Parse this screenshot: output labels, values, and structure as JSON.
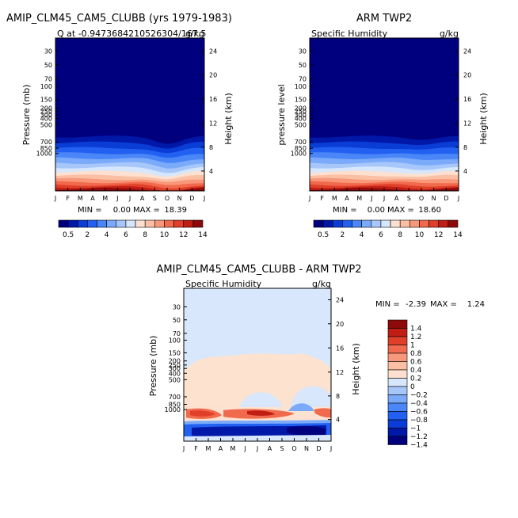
{
  "panels": [
    {
      "title": "AMIP_CLM45_CAM5_CLUBB (yrs 1979-1983)",
      "subtitle": "Q at -0.9473684210526304/167.5",
      "units": "g/kg",
      "ylabel": "Pressure (mb)",
      "ylabel_right": "Height (km)",
      "min_label": "MIN =",
      "min_value": "0.00",
      "max_label": "MAX =",
      "max_value": "18.39"
    },
    {
      "title": "ARM TWP2",
      "subtitle": "Specific Humidity",
      "units": "g/kg",
      "ylabel": "pressure level",
      "ylabel_right": "Height (km)",
      "min_label": "MIN =",
      "min_value": "0.00",
      "max_label": "MAX =",
      "max_value": "18.60"
    },
    {
      "title": "AMIP_CLM45_CAM5_CLUBB - ARM TWP2",
      "subtitle": "Specific Humidity",
      "units": "g/kg",
      "ylabel": "Pressure (mb)",
      "ylabel_right": "Height (km)",
      "min_label": "MIN =",
      "min_value": "-2.39",
      "max_label": "MAX =",
      "max_value": "1.24"
    }
  ],
  "chart_data": [
    {
      "type": "heatmap",
      "x": [
        "J",
        "F",
        "M",
        "A",
        "M",
        "J",
        "J",
        "A",
        "S",
        "O",
        "N",
        "D",
        "J"
      ],
      "y_pressure_ticks": [
        "30",
        "50",
        "70",
        "100",
        "150",
        "200",
        "250",
        "300",
        "400",
        "500",
        "700",
        "850",
        "1000"
      ],
      "y_height_ticks": [
        "24",
        "20",
        "16",
        "12",
        "8",
        "4"
      ],
      "colorbar_ticks": [
        "0.5",
        "2",
        "4",
        "6",
        "8",
        "10",
        "12",
        "14"
      ],
      "colors": [
        "#00007f",
        "#0018a8",
        "#0a3cd6",
        "#2160f0",
        "#4a86f8",
        "#7aaaf9",
        "#a7c7fb",
        "#d6e6fc",
        "#fde0d0",
        "#fbbfa3",
        "#f8987a",
        "#f26a4d",
        "#e0402a",
        "#c01d14",
        "#8e0a0a"
      ]
    },
    {
      "type": "heatmap",
      "x": [
        "J",
        "F",
        "M",
        "A",
        "M",
        "J",
        "J",
        "A",
        "S",
        "O",
        "N",
        "D",
        "J"
      ],
      "y_pressure_ticks": [
        "30",
        "50",
        "70",
        "100",
        "150",
        "200",
        "250",
        "300",
        "400",
        "500",
        "700",
        "850",
        "1000"
      ],
      "y_height_ticks": [
        "24",
        "20",
        "16",
        "12",
        "8",
        "4"
      ],
      "colorbar_ticks": [
        "0.5",
        "2",
        "4",
        "6",
        "8",
        "10",
        "12",
        "14"
      ],
      "colors": [
        "#00007f",
        "#0018a8",
        "#0a3cd6",
        "#2160f0",
        "#4a86f8",
        "#7aaaf9",
        "#a7c7fb",
        "#d6e6fc",
        "#fde0d0",
        "#fbbfa3",
        "#f8987a",
        "#f26a4d",
        "#e0402a",
        "#c01d14",
        "#8e0a0a"
      ]
    },
    {
      "type": "heatmap",
      "x": [
        "J",
        "F",
        "M",
        "A",
        "M",
        "J",
        "J",
        "A",
        "S",
        "O",
        "N",
        "D",
        "J"
      ],
      "y_pressure_ticks": [
        "30",
        "50",
        "70",
        "100",
        "150",
        "200",
        "250",
        "300",
        "400",
        "500",
        "700",
        "850",
        "1000"
      ],
      "y_height_ticks": [
        "24",
        "20",
        "16",
        "12",
        "8",
        "4"
      ],
      "colorbar_ticks": [
        "1.4",
        "1.2",
        "1",
        "0.8",
        "0.6",
        "0.4",
        "0.2",
        "0",
        "-0.2",
        "-0.4",
        "-0.6",
        "-0.8",
        "-1",
        "-1.2",
        "-1.4"
      ],
      "colors": [
        "#8e0a0a",
        "#c01d14",
        "#e0402a",
        "#f26a4d",
        "#f8987a",
        "#fbbfa3",
        "#fde0d0",
        "#d6e6fc",
        "#a7c7fb",
        "#7aaaf9",
        "#4a86f8",
        "#2160f0",
        "#0a3cd6",
        "#0018a8",
        "#00007f"
      ]
    }
  ]
}
